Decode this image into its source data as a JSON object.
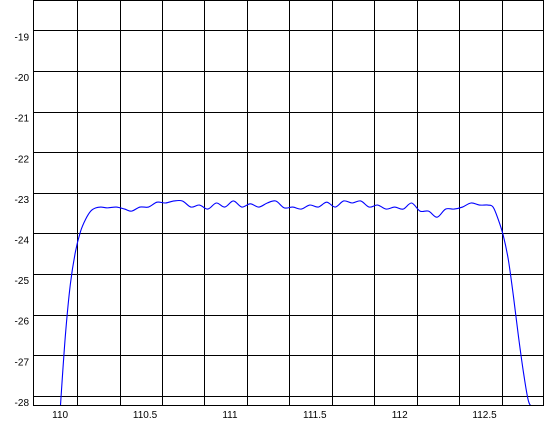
{
  "chart_data": {
    "type": "line",
    "title": "",
    "xlabel": "",
    "ylabel": "",
    "xlim": [
      109.84,
      112.85
    ],
    "ylim": [
      -28.1,
      -18.1
    ],
    "grid": true,
    "xticks": [
      {
        "value": 110,
        "label": "110"
      },
      {
        "value": 110.5,
        "label": "110.5"
      },
      {
        "value": 111,
        "label": "111"
      },
      {
        "value": 111.5,
        "label": "111.5"
      },
      {
        "value": 112,
        "label": "112"
      },
      {
        "value": 112.5,
        "label": "112.5"
      }
    ],
    "xgrid": [
      110.1,
      110.35,
      110.6,
      110.85,
      111.1,
      111.35,
      111.6,
      111.85,
      112.1,
      112.35,
      112.6
    ],
    "yticks": [
      {
        "value": -19,
        "label": "-19"
      },
      {
        "value": -20,
        "label": "-20"
      },
      {
        "value": -21,
        "label": "-21"
      },
      {
        "value": -22,
        "label": "-22"
      },
      {
        "value": -23,
        "label": "-23"
      },
      {
        "value": -24,
        "label": "-24"
      },
      {
        "value": -25,
        "label": "-25"
      },
      {
        "value": -26,
        "label": "-26"
      },
      {
        "value": -27,
        "label": "-27"
      },
      {
        "value": -28,
        "label": "-28"
      }
    ],
    "ygrid": [
      -18.85,
      -19.85,
      -20.85,
      -21.85,
      -22.85,
      -23.85,
      -24.85,
      -25.85,
      -26.85,
      -27.85
    ],
    "series": [
      {
        "color": "#0000ff",
        "x": [
          110.0,
          110.03,
          110.06,
          110.09,
          110.12,
          110.15,
          110.18,
          110.21,
          110.24,
          110.28,
          110.33,
          110.38,
          110.42,
          110.47,
          110.52,
          110.57,
          110.62,
          110.67,
          110.72,
          110.77,
          110.82,
          110.87,
          110.92,
          110.97,
          111.02,
          111.07,
          111.12,
          111.17,
          111.22,
          111.27,
          111.32,
          111.37,
          111.42,
          111.47,
          111.52,
          111.57,
          111.62,
          111.67,
          111.72,
          111.77,
          111.82,
          111.87,
          111.92,
          111.97,
          112.02,
          112.07,
          112.12,
          112.17,
          112.22,
          112.27,
          112.32,
          112.37,
          112.42,
          112.47,
          112.52,
          112.55,
          112.58,
          112.61,
          112.64,
          112.67,
          112.7,
          112.73,
          112.76,
          112.79,
          112.82
        ],
        "y": [
          -28.2,
          -26.4,
          -25.1,
          -24.3,
          -23.8,
          -23.5,
          -23.3,
          -23.22,
          -23.2,
          -23.22,
          -23.2,
          -23.25,
          -23.3,
          -23.2,
          -23.2,
          -23.08,
          -23.1,
          -23.05,
          -23.05,
          -23.2,
          -23.15,
          -23.25,
          -23.1,
          -23.2,
          -23.05,
          -23.2,
          -23.12,
          -23.2,
          -23.1,
          -23.05,
          -23.22,
          -23.2,
          -23.25,
          -23.15,
          -23.2,
          -23.08,
          -23.2,
          -23.05,
          -23.1,
          -23.05,
          -23.2,
          -23.15,
          -23.25,
          -23.2,
          -23.25,
          -23.1,
          -23.3,
          -23.3,
          -23.45,
          -23.25,
          -23.25,
          -23.2,
          -23.1,
          -23.15,
          -23.15,
          -23.2,
          -23.5,
          -23.9,
          -24.5,
          -25.4,
          -26.4,
          -27.3,
          -28.0,
          -28.1,
          -28.1
        ]
      }
    ]
  }
}
